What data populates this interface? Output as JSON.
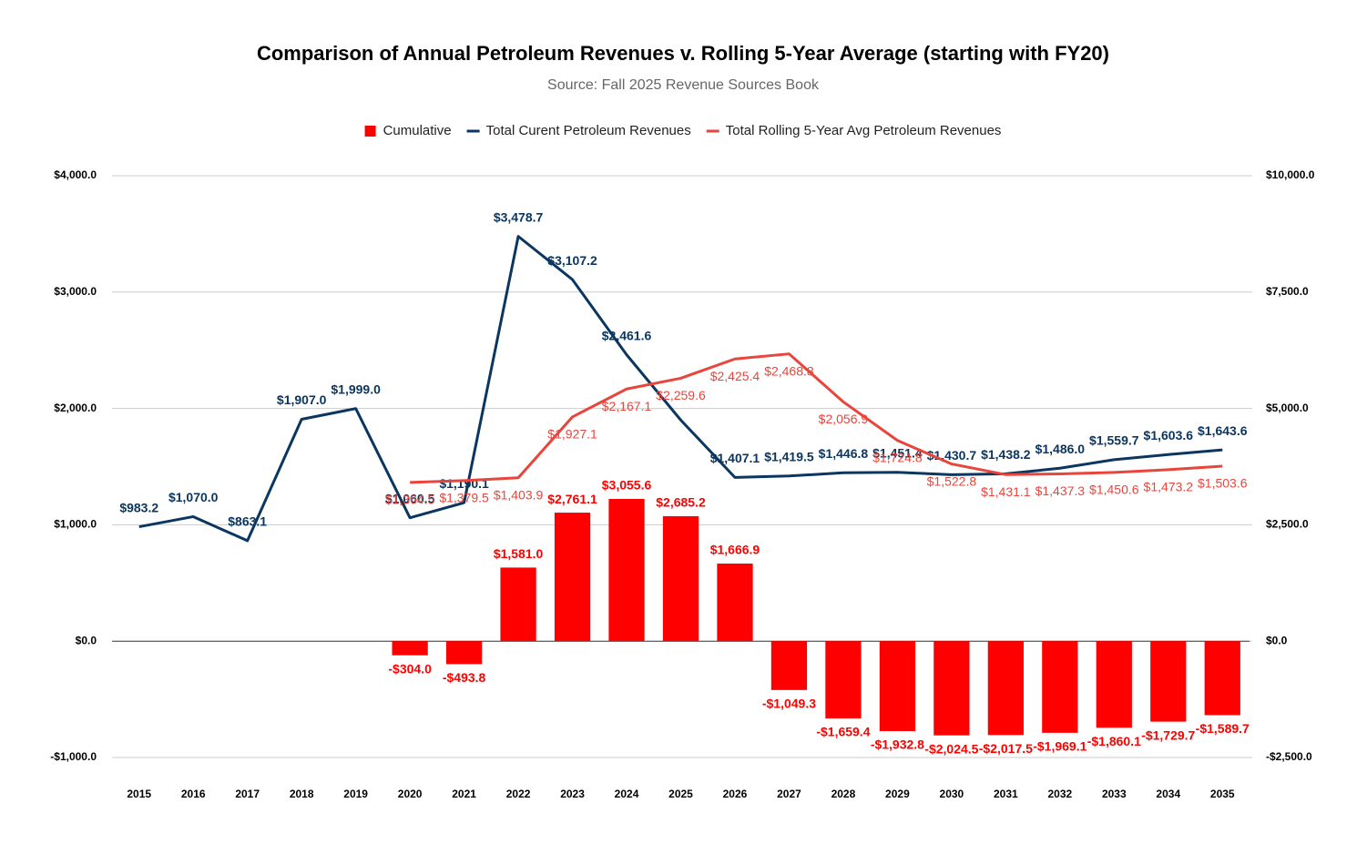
{
  "chart_data": {
    "type": "combo",
    "title": "Comparison of Annual Petroleum Revenues v. Rolling 5-Year Average (starting with FY20)",
    "subtitle": "Source: Fall 2025 Revenue Sources Book",
    "categories": [
      "2015",
      "2016",
      "2017",
      "2018",
      "2019",
      "2020",
      "2021",
      "2022",
      "2023",
      "2024",
      "2025",
      "2026",
      "2027",
      "2028",
      "2029",
      "2030",
      "2031",
      "2032",
      "2033",
      "2034",
      "2035"
    ],
    "series": [
      {
        "name": "Cumulative",
        "type": "bar",
        "axis": "y2",
        "color": "#ff0000",
        "values": [
          null,
          null,
          null,
          null,
          null,
          -304.0,
          -493.8,
          1581.0,
          2761.1,
          3055.6,
          2685.2,
          1666.9,
          -1049.3,
          -1659.4,
          -1932.8,
          -2024.5,
          -2017.5,
          -1969.1,
          -1860.1,
          -1729.7,
          -1589.7
        ],
        "value_labels": [
          null,
          null,
          null,
          null,
          null,
          "-$304.0",
          "-$493.8",
          "$1,581.0",
          "$2,761.1",
          "$3,055.6",
          "$2,685.2",
          "$1,666.9",
          "-$1,049.3",
          "-$1,659.4",
          "-$1,932.8",
          "-$2,024.5",
          "-$2,017.5",
          "-$1,969.1",
          "-$1,860.1",
          "-$1,729.7",
          "-$1,589.7"
        ]
      },
      {
        "name": "Total Curent Petroleum Revenues",
        "type": "line",
        "axis": "y",
        "color": "#0b3660",
        "values": [
          983.2,
          1070.0,
          863.1,
          1907.0,
          1999.0,
          1060.5,
          1190.1,
          3478.7,
          3107.2,
          2461.6,
          1900.0,
          1407.1,
          1419.5,
          1446.8,
          1451.4,
          1430.7,
          1438.2,
          1486.0,
          1559.7,
          1603.6,
          1643.6
        ],
        "value_labels": [
          "$983.2",
          "$1,070.0",
          "$863.1",
          "$1,907.0",
          "$1,999.0",
          "$1,060.5",
          "$1,190.1",
          "$3,478.7",
          "$3,107.2",
          "$2,461.6",
          null,
          "$1,407.1",
          "$1,419.5",
          "$1,446.8",
          "$1,451.4",
          "$1,430.7",
          "$1,438.2",
          "$1,486.0",
          "$1,559.7",
          "$1,603.6",
          "$1,643.6"
        ]
      },
      {
        "name": "Total Rolling 5-Year Avg Petroleum Revenues",
        "type": "line",
        "axis": "y",
        "color": "#e8453c",
        "values": [
          null,
          null,
          null,
          null,
          null,
          1364.5,
          1379.5,
          1403.9,
          1927.1,
          2167.1,
          2259.6,
          2425.4,
          2468.8,
          2056.9,
          1724.8,
          1522.8,
          1431.1,
          1437.3,
          1450.6,
          1473.2,
          1503.6
        ],
        "value_labels": [
          null,
          null,
          null,
          null,
          null,
          "$1,364.5",
          "$1,379.5",
          "$1,403.9",
          "$1,927.1",
          "$2,167.1",
          "$2,259.6",
          "$2,425.4",
          "$2,468.8",
          "$2,056.9",
          "$1,724.8",
          "$1,522.8",
          "$1,431.1",
          "$1,437.3",
          "$1,450.6",
          "$1,473.2",
          "$1,503.6"
        ]
      }
    ],
    "ylim": [
      -1000,
      4000
    ],
    "yticks": [
      {
        "value": -1000,
        "label": "-$1,000.0"
      },
      {
        "value": 0,
        "label": "$0.0"
      },
      {
        "value": 1000,
        "label": "$1,000.0"
      },
      {
        "value": 2000,
        "label": "$2,000.0"
      },
      {
        "value": 3000,
        "label": "$3,000.0"
      },
      {
        "value": 4000,
        "label": "$4,000.0"
      }
    ],
    "y2lim": [
      -2500,
      10000
    ],
    "y2ticks": [
      {
        "value": -2500,
        "label": "-$2,500.0"
      },
      {
        "value": 0,
        "label": "$0.0"
      },
      {
        "value": 2500,
        "label": "$2,500.0"
      },
      {
        "value": 5000,
        "label": "$5,000.0"
      },
      {
        "value": 7500,
        "label": "$7,500.0"
      },
      {
        "value": 10000,
        "label": "$10,000.0"
      }
    ],
    "grid": true,
    "legend": "top"
  }
}
